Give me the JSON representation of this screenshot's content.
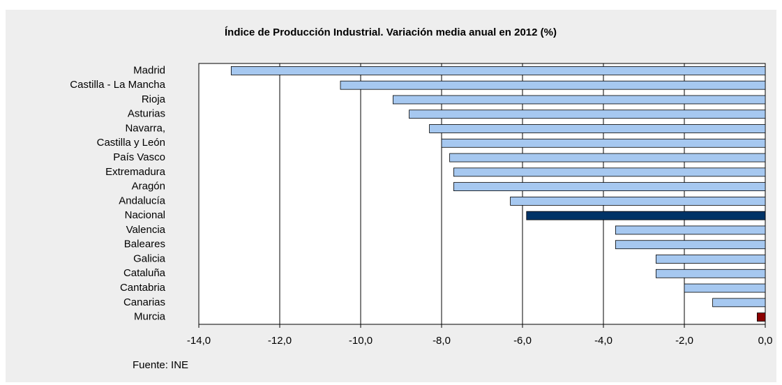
{
  "chart_data": {
    "type": "bar",
    "orientation": "horizontal",
    "title": "Índice de Producción Industrial. Variación media anual en 2012 (%)",
    "categories": [
      "Madrid",
      "Castilla - La Mancha",
      "Rioja",
      "Asturias",
      "Navarra,",
      "Castilla y León",
      "País Vasco",
      "Extremadura",
      "Aragón",
      "Andalucía",
      "Nacional",
      "Valencia",
      "Baleares",
      "Galicia",
      "Cataluña",
      "Cantabria",
      "Canarias",
      "Murcia"
    ],
    "values": [
      -13.2,
      -10.5,
      -9.2,
      -8.8,
      -8.3,
      -8.0,
      -7.8,
      -7.7,
      -7.7,
      -6.3,
      -5.9,
      -3.7,
      -3.7,
      -2.7,
      -2.7,
      -2.0,
      -1.3,
      -0.2
    ],
    "colors": [
      "#a6c8f0",
      "#a6c8f0",
      "#a6c8f0",
      "#a6c8f0",
      "#a6c8f0",
      "#a6c8f0",
      "#a6c8f0",
      "#a6c8f0",
      "#a6c8f0",
      "#a6c8f0",
      "#003366",
      "#a6c8f0",
      "#a6c8f0",
      "#a6c8f0",
      "#a6c8f0",
      "#a6c8f0",
      "#a6c8f0",
      "#8b0000"
    ],
    "xlim": [
      -14,
      0
    ],
    "xticks": [
      {
        "value": -14,
        "label": "-14,0"
      },
      {
        "value": -12,
        "label": "-12,0"
      },
      {
        "value": -10,
        "label": "-10,0"
      },
      {
        "value": -8,
        "label": "-8,0"
      },
      {
        "value": -6,
        "label": "-6,0"
      },
      {
        "value": -4,
        "label": "-4,0"
      },
      {
        "value": -2,
        "label": "-2,0"
      },
      {
        "value": 0,
        "label": "0,0"
      }
    ],
    "grid": true,
    "source": "Fuente: INE"
  }
}
